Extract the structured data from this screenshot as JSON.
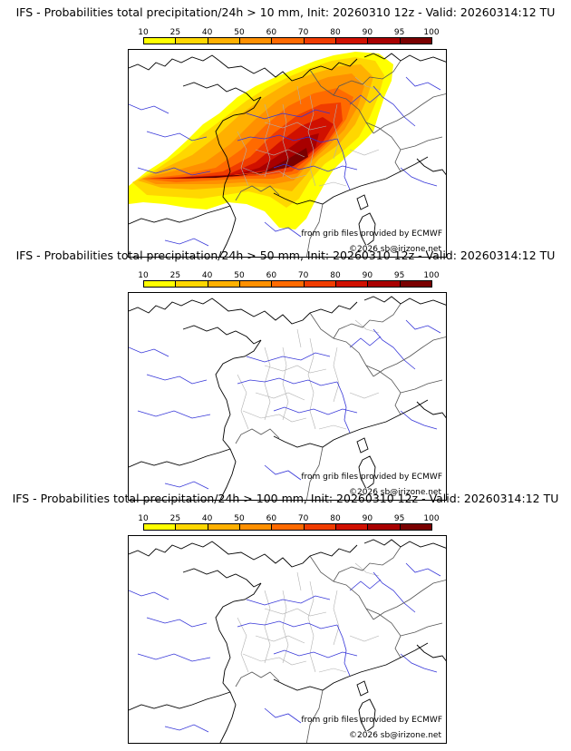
{
  "colorbar": {
    "labels": [
      "10",
      "25",
      "40",
      "50",
      "60",
      "70",
      "80",
      "90",
      "95",
      "100"
    ],
    "colors": [
      "#ffff00",
      "#ffd700",
      "#ffb000",
      "#ff9000",
      "#ff6a00",
      "#f03c00",
      "#d01000",
      "#a80000",
      "#7a0000",
      "#4a0000"
    ]
  },
  "panels": [
    {
      "title": "IFS - Probabilities total precipitation/24h > 10 mm, Init: 20260310 12z - Valid: 20260314:12 TU",
      "source": "from grib files provided by ECMWF",
      "copyright": "©2026 sb@irizone.net",
      "has_precip": true
    },
    {
      "title": "IFS - Probabilities total precipitation/24h > 50 mm, Init: 20260310 12z - Valid: 20260314:12 TU",
      "source": "from grib files provided by ECMWF",
      "copyright": "©2026 sb@irizone.net",
      "has_precip": false
    },
    {
      "title": "IFS - Probabilities total precipitation/24h > 100 mm, Init: 20260310 12z - Valid: 20260314:12 TU",
      "source": "from grib files provided by ECMWF",
      "copyright": "©2026 sb@irizone.net",
      "has_precip": false
    }
  ]
}
